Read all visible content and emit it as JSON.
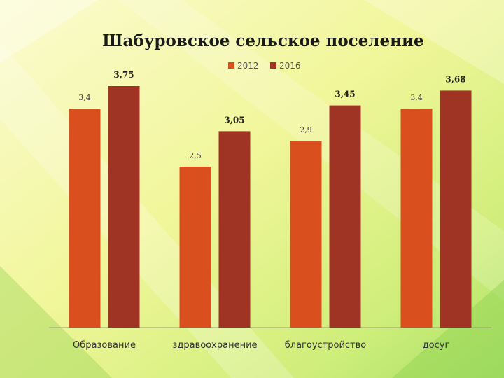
{
  "colors": {
    "series_2012": "#d9501e",
    "series_2016": "#a03424",
    "axis": "#9a9a7a"
  },
  "chart_data": {
    "type": "bar",
    "title": "Шабуровское сельское поселение",
    "categories": [
      "Образование",
      "здравоохранение",
      "благоустройство",
      "досуг"
    ],
    "series": [
      {
        "name": "2012",
        "values": [
          3.4,
          2.5,
          2.9,
          3.4
        ],
        "labels": [
          "3,4",
          "2,5",
          "2,9",
          "3,4"
        ]
      },
      {
        "name": "2016",
        "values": [
          3.75,
          3.05,
          3.45,
          3.68
        ],
        "labels": [
          "3,75",
          "3,05",
          "3,45",
          "3,68"
        ]
      }
    ],
    "ylim": [
      0,
      4.0
    ],
    "legend": "top-center",
    "grid": false
  }
}
